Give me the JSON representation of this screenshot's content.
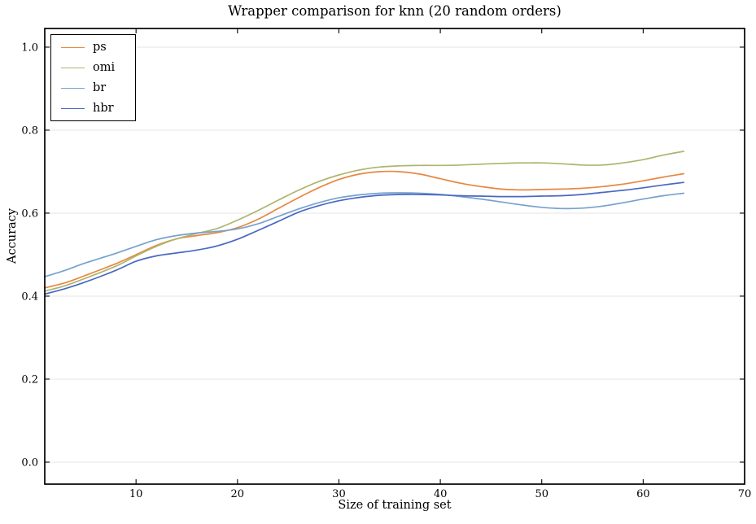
{
  "chart_data": {
    "type": "line",
    "title": "Wrapper comparison for knn (20 random orders)",
    "xlabel": "Size of training set",
    "ylabel": "Accuracy",
    "xlim": [
      1,
      70
    ],
    "ylim": [
      -0.053,
      1.045
    ],
    "xticks": [
      10,
      20,
      30,
      40,
      50,
      60,
      70
    ],
    "yticks": [
      0.0,
      0.2,
      0.4,
      0.6,
      0.8,
      1.0
    ],
    "grid": "horizontal",
    "grid_color": "#e6e6e6",
    "spine_color": "#000000",
    "legend_position": "upper-left",
    "x": [
      1,
      3,
      5,
      8,
      10,
      12,
      14,
      16,
      18,
      20,
      22,
      24,
      26,
      28,
      30,
      32,
      34,
      36,
      38,
      40,
      42,
      44,
      46,
      48,
      50,
      52,
      54,
      56,
      58,
      60,
      62,
      64
    ],
    "series": [
      {
        "name": "ps",
        "color": "#e78840",
        "values": [
          0.42,
          0.432,
          0.45,
          0.478,
          0.5,
          0.522,
          0.538,
          0.546,
          0.553,
          0.565,
          0.585,
          0.611,
          0.637,
          0.661,
          0.681,
          0.694,
          0.7,
          0.7,
          0.694,
          0.683,
          0.672,
          0.664,
          0.658,
          0.656,
          0.657,
          0.658,
          0.66,
          0.664,
          0.67,
          0.678,
          0.687,
          0.695
        ]
      },
      {
        "name": "omi",
        "color": "#adb56e",
        "values": [
          0.412,
          0.425,
          0.443,
          0.472,
          0.497,
          0.52,
          0.538,
          0.551,
          0.563,
          0.583,
          0.606,
          0.631,
          0.655,
          0.676,
          0.692,
          0.704,
          0.711,
          0.714,
          0.715,
          0.715,
          0.716,
          0.718,
          0.72,
          0.721,
          0.721,
          0.719,
          0.716,
          0.716,
          0.721,
          0.729,
          0.74,
          0.749
        ]
      },
      {
        "name": "br",
        "color": "#76a2ce",
        "values": [
          0.447,
          0.462,
          0.48,
          0.503,
          0.52,
          0.536,
          0.546,
          0.552,
          0.556,
          0.562,
          0.574,
          0.592,
          0.61,
          0.625,
          0.637,
          0.644,
          0.648,
          0.649,
          0.648,
          0.645,
          0.64,
          0.634,
          0.627,
          0.62,
          0.614,
          0.611,
          0.612,
          0.617,
          0.625,
          0.634,
          0.642,
          0.648
        ]
      },
      {
        "name": "hbr",
        "color": "#4968c2",
        "values": [
          0.405,
          0.418,
          0.434,
          0.462,
          0.484,
          0.497,
          0.504,
          0.511,
          0.521,
          0.537,
          0.558,
          0.58,
          0.602,
          0.618,
          0.63,
          0.638,
          0.643,
          0.645,
          0.645,
          0.644,
          0.642,
          0.641,
          0.64,
          0.64,
          0.641,
          0.642,
          0.645,
          0.65,
          0.655,
          0.661,
          0.668,
          0.674
        ]
      }
    ]
  }
}
